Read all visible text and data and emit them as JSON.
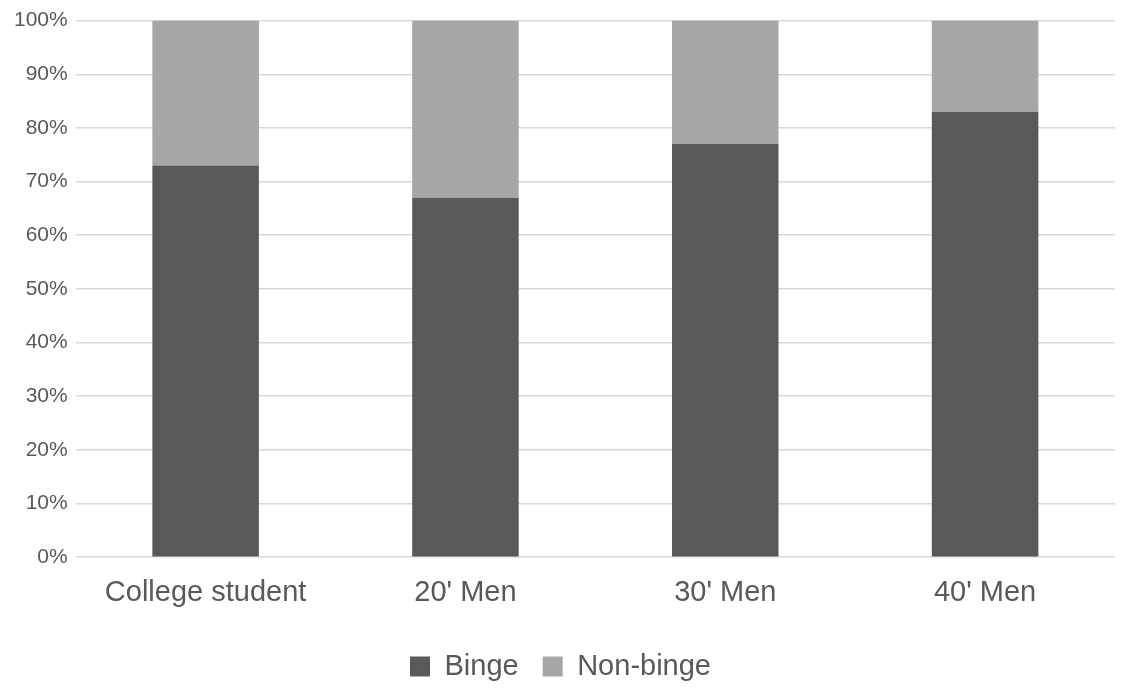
{
  "chart_data": {
    "type": "bar",
    "stacked": true,
    "categories": [
      "College student",
      "20' Men",
      "30' Men",
      "40' Men"
    ],
    "series": [
      {
        "name": "Binge",
        "color": "#595959",
        "values": [
          73,
          67,
          77,
          83
        ]
      },
      {
        "name": "Non-binge",
        "color": "#a6a6a6",
        "values": [
          27,
          33,
          23,
          17
        ]
      }
    ],
    "ylim": [
      0,
      100
    ],
    "yticks": [
      {
        "value": 0,
        "label": "0%"
      },
      {
        "value": 10,
        "label": "10%"
      },
      {
        "value": 20,
        "label": "20%"
      },
      {
        "value": 30,
        "label": "30%"
      },
      {
        "value": 40,
        "label": "40%"
      },
      {
        "value": 50,
        "label": "50%"
      },
      {
        "value": 60,
        "label": "60%"
      },
      {
        "value": 70,
        "label": "70%"
      },
      {
        "value": 80,
        "label": "80%"
      },
      {
        "value": 90,
        "label": "90%"
      },
      {
        "value": 100,
        "label": "100%"
      }
    ],
    "grid": "y",
    "legend": "bottom"
  }
}
